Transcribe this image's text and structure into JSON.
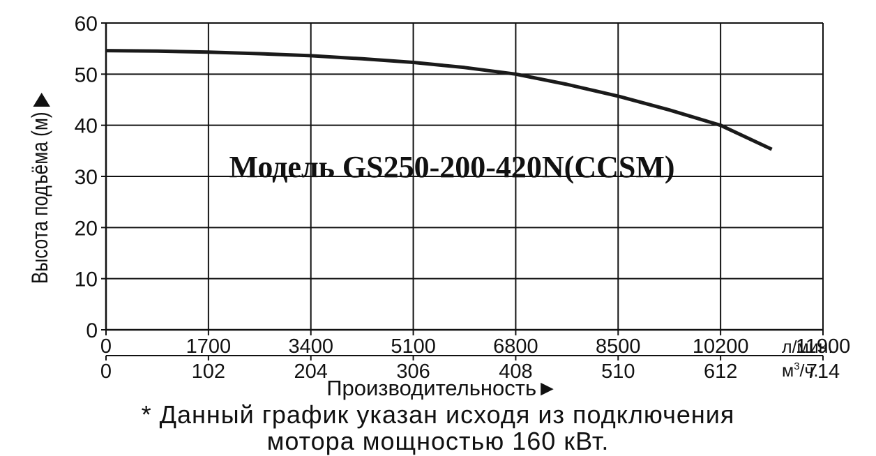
{
  "chart_data": {
    "type": "line",
    "title": "Модель GS250-200-420N(CCSM)",
    "ylabel": "Высота подъёма (м)",
    "ylabel_arrow": "▶",
    "xlabel": "Производительность",
    "xlabel_arrow": "►",
    "ylim": [
      0,
      60
    ],
    "yticks": [
      "0",
      "10",
      "20",
      "30",
      "40",
      "50",
      "60"
    ],
    "xlim": [
      0,
      714
    ],
    "x_axis_primary": {
      "unit": "л/мин.",
      "ticks": [
        "0",
        "1700",
        "3400",
        "5100",
        "6800",
        "8500",
        "10200",
        "11900"
      ]
    },
    "x_axis_secondary": {
      "unit_base": "м",
      "unit_sup": "3",
      "unit_tail": "/ч.",
      "ticks": [
        "0",
        "102",
        "204",
        "306",
        "408",
        "510",
        "612",
        "714"
      ]
    },
    "grid": true,
    "series": [
      {
        "x": [
          0,
          51,
          102,
          153,
          204,
          255,
          306,
          357,
          408,
          459,
          510,
          561,
          612,
          663
        ],
        "y": [
          54.6,
          54.5,
          54.3,
          54.0,
          53.6,
          53.0,
          52.3,
          51.3,
          50.0,
          48.0,
          45.7,
          43.0,
          40.0,
          35.3
        ]
      }
    ],
    "line_color": "#1a1a1a",
    "grid_color": "#111111"
  },
  "footnote": {
    "line1": "* Данный график указан исходя из подключения",
    "line2": "мотора мощностью 160 кВт."
  }
}
